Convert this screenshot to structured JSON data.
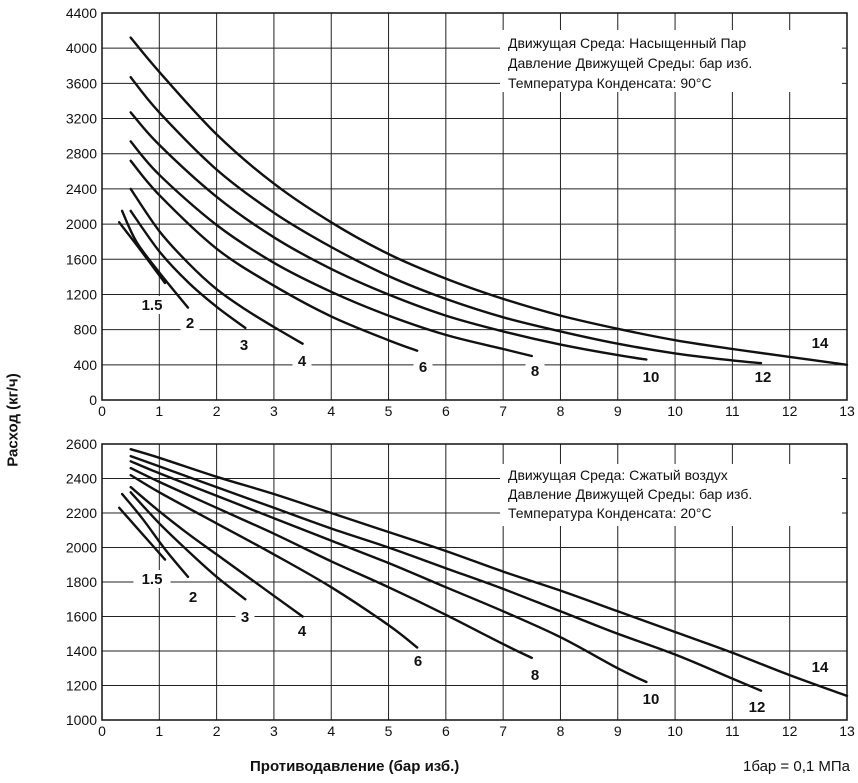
{
  "ylabel": "Расход (кг/ч)",
  "xlabel": "Противодавление (бар изб.)",
  "unit_note": "1бар = 0,1 МПа",
  "chart_data": [
    {
      "type": "line",
      "info_lines": [
        "Движущая Среда: Насыщенный Пар",
        "Давление Движущей Среды: бар изб.",
        "Температура Конденсата: 90°С"
      ],
      "xlim": [
        0,
        13
      ],
      "ylim": [
        0,
        4400
      ],
      "xticks": [
        0,
        1,
        2,
        3,
        4,
        5,
        6,
        7,
        8,
        9,
        10,
        11,
        12,
        13
      ],
      "yticks": [
        0,
        400,
        800,
        1200,
        1600,
        2000,
        2400,
        2800,
        3200,
        3600,
        4000,
        4400
      ],
      "grid": true,
      "series": [
        {
          "name": "1.5",
          "x": [
            0.3,
            0.7,
            1.1
          ],
          "y": [
            2020,
            1680,
            1330
          ]
        },
        {
          "name": "2",
          "x": [
            0.35,
            0.6,
            1.0,
            1.5
          ],
          "y": [
            2150,
            1800,
            1450,
            1050
          ]
        },
        {
          "name": "3",
          "x": [
            0.5,
            1.0,
            1.5,
            2.0,
            2.5
          ],
          "y": [
            2150,
            1690,
            1340,
            1060,
            820
          ]
        },
        {
          "name": "4",
          "x": [
            0.5,
            1.0,
            1.5,
            2.0,
            2.5,
            3.0,
            3.5
          ],
          "y": [
            2400,
            1920,
            1560,
            1260,
            1030,
            830,
            640
          ]
        },
        {
          "name": "6",
          "x": [
            0.5,
            1.0,
            2.0,
            3.0,
            4.0,
            5.0,
            5.5
          ],
          "y": [
            2720,
            2330,
            1720,
            1300,
            950,
            680,
            560
          ]
        },
        {
          "name": "8",
          "x": [
            0.5,
            1.0,
            2.0,
            3.0,
            4.0,
            5.0,
            6.0,
            7.0,
            7.5
          ],
          "y": [
            2940,
            2560,
            1990,
            1560,
            1230,
            960,
            740,
            580,
            500
          ]
        },
        {
          "name": "10",
          "x": [
            0.5,
            1.0,
            2.0,
            3.0,
            4.0,
            5.0,
            6.0,
            7.0,
            8.0,
            9.0,
            9.5
          ],
          "y": [
            3270,
            2900,
            2310,
            1850,
            1490,
            1200,
            960,
            780,
            630,
            510,
            460
          ]
        },
        {
          "name": "12",
          "x": [
            0.5,
            1.0,
            2.0,
            3.0,
            4.0,
            5.0,
            6.0,
            7.0,
            8.0,
            9.0,
            10.0,
            11.0,
            11.5
          ],
          "y": [
            3670,
            3270,
            2620,
            2130,
            1740,
            1410,
            1150,
            940,
            780,
            640,
            530,
            450,
            420
          ]
        },
        {
          "name": "14",
          "x": [
            0.5,
            1.0,
            2.0,
            3.0,
            4.0,
            5.0,
            6.0,
            7.0,
            8.0,
            9.0,
            10.0,
            11.0,
            12.0,
            13.0
          ],
          "y": [
            4120,
            3730,
            3020,
            2460,
            2020,
            1660,
            1380,
            1150,
            960,
            810,
            680,
            580,
            490,
            400
          ]
        }
      ]
    },
    {
      "type": "line",
      "info_lines": [
        "Движущая Среда: Сжатый воздух",
        "Давление Движущей Среды: бар изб.",
        "Температура Конденсата: 20°С"
      ],
      "xlim": [
        0,
        13
      ],
      "ylim": [
        1000,
        2600
      ],
      "xticks": [
        0,
        1,
        2,
        3,
        4,
        5,
        6,
        7,
        8,
        9,
        10,
        11,
        12,
        13
      ],
      "yticks": [
        1000,
        1200,
        1400,
        1600,
        1800,
        2000,
        2200,
        2400,
        2600
      ],
      "grid": true,
      "series": [
        {
          "name": "1.5",
          "x": [
            0.3,
            0.7,
            1.1
          ],
          "y": [
            2230,
            2080,
            1930
          ]
        },
        {
          "name": "2",
          "x": [
            0.35,
            0.7,
            1.1,
            1.5
          ],
          "y": [
            2310,
            2170,
            1990,
            1830
          ]
        },
        {
          "name": "3",
          "x": [
            0.5,
            1.0,
            1.5,
            2.0,
            2.5
          ],
          "y": [
            2320,
            2140,
            1980,
            1830,
            1700
          ]
        },
        {
          "name": "4",
          "x": [
            0.5,
            1.0,
            1.5,
            2.0,
            2.5,
            3.0,
            3.5
          ],
          "y": [
            2350,
            2210,
            2080,
            1960,
            1840,
            1720,
            1600
          ]
        },
        {
          "name": "6",
          "x": [
            0.5,
            1.0,
            2.0,
            3.0,
            4.0,
            5.0,
            5.5
          ],
          "y": [
            2420,
            2320,
            2140,
            1960,
            1770,
            1550,
            1420
          ]
        },
        {
          "name": "8",
          "x": [
            0.5,
            1.0,
            2.0,
            3.0,
            4.0,
            5.0,
            6.0,
            7.0,
            7.5
          ],
          "y": [
            2460,
            2380,
            2230,
            2080,
            1920,
            1770,
            1610,
            1440,
            1360
          ]
        },
        {
          "name": "10",
          "x": [
            0.5,
            1.0,
            2.0,
            3.0,
            4.0,
            5.0,
            6.0,
            7.0,
            8.0,
            9.0,
            9.5
          ],
          "y": [
            2500,
            2430,
            2300,
            2170,
            2040,
            1910,
            1770,
            1630,
            1480,
            1300,
            1220
          ]
        },
        {
          "name": "12",
          "x": [
            0.5,
            1.0,
            2.0,
            3.0,
            4.0,
            5.0,
            6.0,
            7.0,
            8.0,
            9.0,
            10.0,
            11.0,
            11.5
          ],
          "y": [
            2530,
            2470,
            2350,
            2230,
            2110,
            2000,
            1880,
            1760,
            1630,
            1500,
            1380,
            1240,
            1170
          ]
        },
        {
          "name": "14",
          "x": [
            0.5,
            1.0,
            2.0,
            3.0,
            4.0,
            5.0,
            6.0,
            7.0,
            8.0,
            9.0,
            10.0,
            11.0,
            12.0,
            13.0
          ],
          "y": [
            2570,
            2520,
            2410,
            2310,
            2200,
            2090,
            1980,
            1860,
            1750,
            1630,
            1510,
            1390,
            1260,
            1140
          ]
        }
      ]
    }
  ]
}
